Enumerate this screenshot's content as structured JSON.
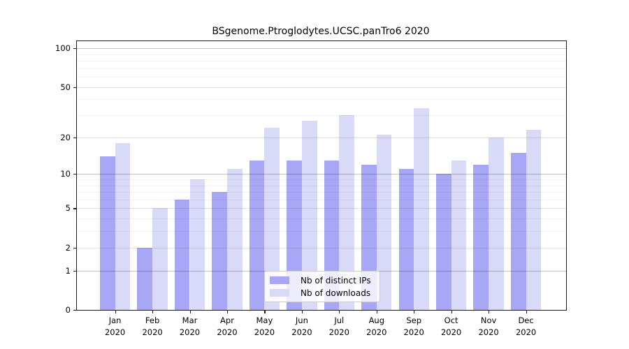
{
  "title": "BSgenome.Ptroglodytes.UCSC.panTro6 2020",
  "chart_data": {
    "type": "bar",
    "title": "BSgenome.Ptroglodytes.UCSC.panTro6 2020",
    "categories": [
      "Jan",
      "Feb",
      "Mar",
      "Apr",
      "May",
      "Jun",
      "Jul",
      "Aug",
      "Sep",
      "Oct",
      "Nov",
      "Dec"
    ],
    "year_label": "2020",
    "series": [
      {
        "name": "Nb of distinct IPs",
        "color": "#a7a7f6",
        "values": [
          14,
          2,
          6,
          7,
          13,
          13,
          13,
          12,
          11,
          10,
          12,
          15
        ]
      },
      {
        "name": "Nb of downloads",
        "color": "#d9d9f8",
        "values": [
          18,
          5,
          9,
          11,
          24,
          27,
          30,
          21,
          34,
          13,
          20,
          23
        ]
      }
    ],
    "y_axis": {
      "scale": "log1p",
      "tick_values": [
        100,
        50,
        20,
        10,
        5,
        2,
        1,
        0
      ],
      "tick_labels": [
        "100",
        "50",
        "20",
        "10",
        "5",
        "2",
        "1",
        "0"
      ],
      "ylim": [
        0,
        110
      ]
    },
    "gridlines": {
      "decade": [
        1,
        10,
        100
      ],
      "labeled": [
        2,
        5,
        20,
        50
      ],
      "minor": [
        3,
        4,
        6,
        7,
        8,
        9,
        30,
        40,
        60,
        70,
        80,
        90
      ]
    },
    "legend": {
      "entries": [
        "Nb of distinct IPs",
        "Nb of downloads"
      ],
      "position": "inside-bottom-center"
    },
    "grid": "on",
    "xlabel": "",
    "ylabel": ""
  }
}
